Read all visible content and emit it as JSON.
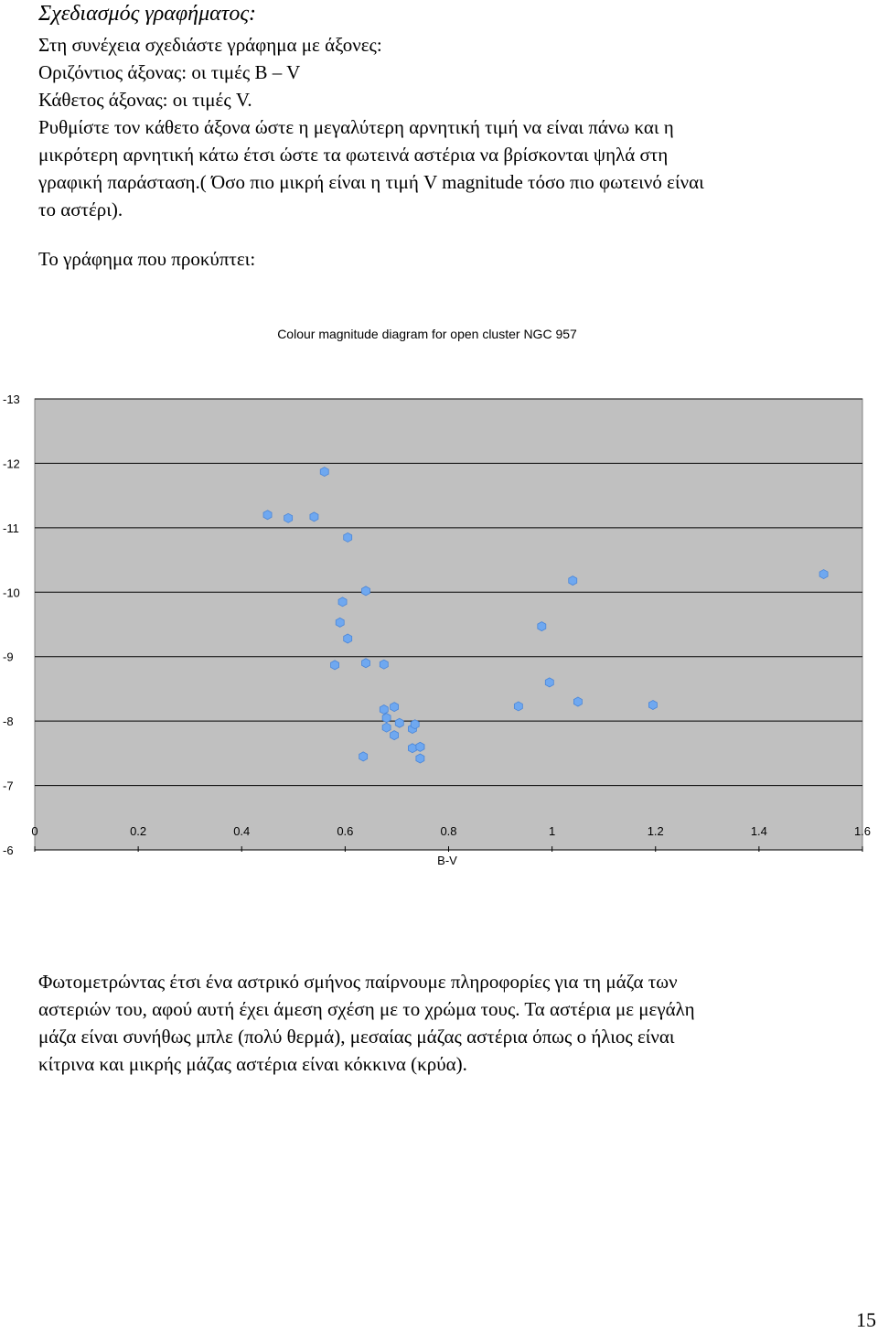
{
  "heading": "Σχεδιασμός γραφήματος:",
  "intro_lines": [
    "Στη συνέχεια σχεδιάστε γράφημα με άξονες:",
    "Οριζόντιος άξονας: οι τιμές B – V",
    "Κάθετος άξονας: οι τιμές V.",
    "Ρυθμίστε τον κάθετο άξονα ώστε η μεγαλύτερη αρνητική τιμή να είναι πάνω και η",
    "μικρότερη αρνητική κάτω έτσι ώστε τα φωτεινά αστέρια να βρίσκονται ψηλά στη",
    "γραφική παράσταση.( Όσο πιο μικρή είναι η τιμή V magnitude τόσο πιο φωτεινό είναι",
    "το αστέρι)."
  ],
  "result_label": "Το γράφημα που προκύπτει:",
  "conclusion_lines": [
    "Φωτομετρώντας έτσι ένα αστρικό σμήνος παίρνουμε πληροφορίες για τη μάζα των",
    "αστεριών του, αφού αυτή έχει άμεση σχέση με το χρώμα τους. Τα αστέρια με μεγάλη",
    "μάζα είναι συνήθως μπλε (πολύ θερμά), μεσαίας μάζας αστέρια όπως ο ήλιος είναι",
    "κίτρινα και μικρής μάζας αστέρια είναι κόκκινα (κρύα)."
  ],
  "page_number": "15",
  "chart_data": {
    "type": "scatter",
    "title": "Colour magnitude diagram for open cluster NGC 957",
    "xlabel": "B-V",
    "ylabel": "",
    "xlim": [
      0,
      1.6
    ],
    "ylim": [
      -13,
      -6
    ],
    "y_inverted": true,
    "x_ticks": [
      "0",
      "0.2",
      "0.4",
      "0.6",
      "0.8",
      "1",
      "1.2",
      "1.4",
      "1.6"
    ],
    "y_ticks": [
      "-13",
      "-12",
      "-11",
      "-10",
      "-9",
      "-8",
      "-7",
      "-6"
    ],
    "grid": "horizontal",
    "plot_background": "#c0c0c0",
    "marker_color": "#6fa8f0",
    "series": [
      {
        "x": [
          0.45,
          0.49,
          0.54,
          0.56,
          0.605,
          0.64,
          0.595,
          0.59,
          0.605,
          0.58,
          0.64,
          0.675,
          0.635,
          0.675,
          0.695,
          0.68,
          0.705,
          0.68,
          0.73,
          0.735,
          0.695,
          0.745,
          0.73,
          0.745,
          0.745,
          0.935,
          0.98,
          0.995,
          1.04,
          1.05,
          1.195,
          1.525
        ],
        "y": [
          -11.2,
          -11.15,
          -11.17,
          -11.87,
          -10.85,
          -10.02,
          -9.85,
          -9.53,
          -9.28,
          -8.87,
          -8.9,
          -8.88,
          -7.45,
          -8.18,
          -8.22,
          -8.05,
          -7.97,
          -7.9,
          -7.88,
          -7.95,
          -7.78,
          -7.6,
          -7.58,
          -7.42,
          -7.6,
          -8.23,
          -9.47,
          -8.6,
          -10.18,
          -8.3,
          -8.25,
          -10.28
        ]
      }
    ],
    "annotations": []
  }
}
